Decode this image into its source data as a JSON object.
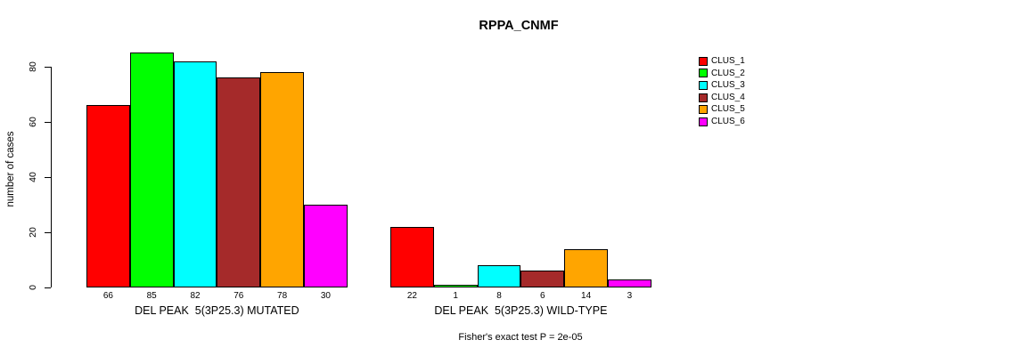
{
  "title": "RPPA_CNMF",
  "footer": "Fisher's exact test P = 2e-05",
  "chart_data": {
    "type": "bar",
    "title": "RPPA_CNMF",
    "xlabel": "",
    "ylabel": "number of cases",
    "ylim": [
      0,
      80
    ],
    "yticks": [
      0,
      20,
      40,
      60,
      80
    ],
    "grid": false,
    "legend_position": "right",
    "bar_value_labels_shown": true,
    "categories": [
      "DEL PEAK  5(3P25.3) MUTATED",
      "DEL PEAK  5(3P25.3) WILD-TYPE"
    ],
    "series": [
      {
        "name": "CLUS_1",
        "color": "#FF0000",
        "values": [
          66,
          22
        ]
      },
      {
        "name": "CLUS_2",
        "color": "#00FF00",
        "values": [
          85,
          1
        ]
      },
      {
        "name": "CLUS_3",
        "color": "#00FFFF",
        "values": [
          82,
          8
        ]
      },
      {
        "name": "CLUS_4",
        "color": "#A52A2A",
        "values": [
          76,
          6
        ]
      },
      {
        "name": "CLUS_5",
        "color": "#FFA500",
        "values": [
          78,
          14
        ]
      },
      {
        "name": "CLUS_6",
        "color": "#FF00FF",
        "values": [
          30,
          3
        ]
      }
    ],
    "annotation": "Fisher's exact test P = 2e-05"
  }
}
